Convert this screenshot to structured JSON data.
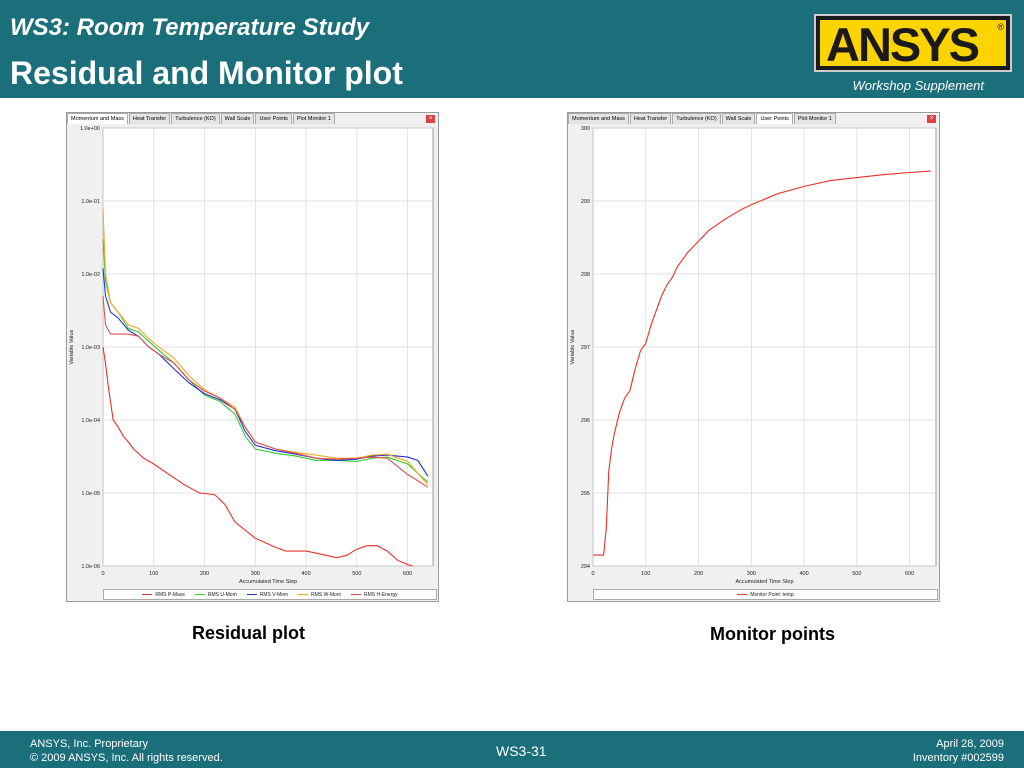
{
  "header": {
    "subtitle": "WS3: Room Temperature Study",
    "title": "Residual and Monitor plot",
    "logo_text": "ANSYS",
    "workshop_label": "Workshop Supplement"
  },
  "footer": {
    "proprietary": "ANSYS, Inc. Proprietary",
    "copyright": "© 2009 ANSYS, Inc.  All rights reserved.",
    "page": "WS3-31",
    "date": "April 28, 2009",
    "inventory": "Inventory #002599"
  },
  "tabs": [
    "Momentum and Mass",
    "Heat Transfer",
    "Turbulence (KO)",
    "Wall Scale",
    "User Points",
    "Plot Monitor 1"
  ],
  "residual_panel": {
    "active_tab": 0,
    "caption": "Residual plot"
  },
  "monitor_panel": {
    "active_tab": 4,
    "caption": "Monitor points"
  },
  "chart_data": [
    {
      "type": "line",
      "title": "",
      "xlabel": "Accumulated Time Step",
      "ylabel": "Variable Value",
      "y_scale": "log",
      "ylim": [
        1e-06,
        1
      ],
      "xlim": [
        0,
        650
      ],
      "x_ticks": [
        "0",
        "100",
        "200",
        "300",
        "400",
        "500",
        "600"
      ],
      "y_ticks": [
        "1.0e-06",
        "1.0e-05",
        "1.0e-04",
        "1.0e-03",
        "1.0e-02",
        "1.0e-01",
        "1.0e+00"
      ],
      "grid": true,
      "legend_position": "bottom",
      "series": [
        {
          "name": "RMS P-Mass",
          "color": "#e8302a",
          "points": [
            [
              0,
              0.001
            ],
            [
              5,
              0.0006
            ],
            [
              10,
              0.0003
            ],
            [
              20,
              0.0001
            ],
            [
              30,
              8e-05
            ],
            [
              40,
              6e-05
            ],
            [
              50,
              5e-05
            ],
            [
              60,
              4e-05
            ],
            [
              80,
              3e-05
            ],
            [
              100,
              2.5e-05
            ],
            [
              130,
              1.8e-05
            ],
            [
              160,
              1.3e-05
            ],
            [
              190,
              1e-05
            ],
            [
              220,
              9.5e-06
            ],
            [
              240,
              7e-06
            ],
            [
              260,
              4e-06
            ],
            [
              300,
              2.4e-06
            ],
            [
              340,
              1.8e-06
            ],
            [
              360,
              1.6e-06
            ],
            [
              380,
              1.6e-06
            ],
            [
              400,
              1.6e-06
            ],
            [
              440,
              1.4e-06
            ],
            [
              460,
              1.3e-06
            ],
            [
              480,
              1.4e-06
            ],
            [
              500,
              1.7e-06
            ],
            [
              520,
              1.9e-06
            ],
            [
              540,
              1.9e-06
            ],
            [
              560,
              1.6e-06
            ],
            [
              580,
              1.2e-06
            ],
            [
              600,
              1.05e-06
            ],
            [
              610,
              1e-06
            ]
          ]
        },
        {
          "name": "RMS U-Mom",
          "color": "#33cc33",
          "points": [
            [
              0,
              0.03
            ],
            [
              5,
              0.008
            ],
            [
              15,
              0.004
            ],
            [
              30,
              0.003
            ],
            [
              50,
              0.0018
            ],
            [
              70,
              0.0016
            ],
            [
              90,
              0.0012
            ],
            [
              110,
              0.0009
            ],
            [
              140,
              0.0006
            ],
            [
              170,
              0.00035
            ],
            [
              200,
              0.00022
            ],
            [
              230,
              0.00018
            ],
            [
              260,
              0.00012
            ],
            [
              280,
              6e-05
            ],
            [
              300,
              4e-05
            ],
            [
              340,
              3.5e-05
            ],
            [
              380,
              3.2e-05
            ],
            [
              420,
              2.8e-05
            ],
            [
              460,
              2.8e-05
            ],
            [
              500,
              2.7e-05
            ],
            [
              530,
              3e-05
            ],
            [
              560,
              3.1e-05
            ],
            [
              600,
              2.5e-05
            ],
            [
              640,
              1.4e-05
            ]
          ]
        },
        {
          "name": "RMS V-Mom",
          "color": "#2233cc",
          "points": [
            [
              0,
              0.012
            ],
            [
              5,
              0.005
            ],
            [
              15,
              0.003
            ],
            [
              30,
              0.0025
            ],
            [
              50,
              0.0017
            ],
            [
              70,
              0.0014
            ],
            [
              90,
              0.001
            ],
            [
              110,
              0.0008
            ],
            [
              140,
              0.0005
            ],
            [
              170,
              0.00032
            ],
            [
              200,
              0.00023
            ],
            [
              230,
              0.00019
            ],
            [
              260,
              0.00014
            ],
            [
              280,
              7e-05
            ],
            [
              300,
              4.5e-05
            ],
            [
              340,
              3.8e-05
            ],
            [
              380,
              3.4e-05
            ],
            [
              420,
              3e-05
            ],
            [
              460,
              2.8e-05
            ],
            [
              500,
              2.9e-05
            ],
            [
              530,
              3.2e-05
            ],
            [
              560,
              3.3e-05
            ],
            [
              600,
              3.1e-05
            ],
            [
              620,
              2.8e-05
            ],
            [
              640,
              1.7e-05
            ]
          ]
        },
        {
          "name": "RMS W-Mom",
          "color": "#f5a623",
          "points": [
            [
              0,
              0.08
            ],
            [
              5,
              0.01
            ],
            [
              15,
              0.004
            ],
            [
              30,
              0.003
            ],
            [
              50,
              0.002
            ],
            [
              70,
              0.0018
            ],
            [
              90,
              0.0013
            ],
            [
              110,
              0.001
            ],
            [
              140,
              0.0007
            ],
            [
              170,
              0.0004
            ],
            [
              200,
              0.00026
            ],
            [
              230,
              0.0002
            ],
            [
              260,
              0.00015
            ],
            [
              280,
              8e-05
            ],
            [
              300,
              5e-05
            ],
            [
              340,
              4e-05
            ],
            [
              380,
              3.6e-05
            ],
            [
              420,
              3.3e-05
            ],
            [
              460,
              3e-05
            ],
            [
              500,
              3e-05
            ],
            [
              530,
              3.3e-05
            ],
            [
              560,
              3.4e-05
            ],
            [
              600,
              2.7e-05
            ],
            [
              640,
              1.3e-05
            ]
          ]
        },
        {
          "name": "RMS H-Energy",
          "color": "#e05050",
          "points": [
            [
              0,
              0.005
            ],
            [
              5,
              0.002
            ],
            [
              15,
              0.0015
            ],
            [
              30,
              0.0015
            ],
            [
              50,
              0.0015
            ],
            [
              70,
              0.0014
            ],
            [
              90,
              0.001
            ],
            [
              110,
              0.0008
            ],
            [
              140,
              0.0006
            ],
            [
              170,
              0.00035
            ],
            [
              200,
              0.00025
            ],
            [
              230,
              0.0002
            ],
            [
              260,
              0.00014
            ],
            [
              280,
              8e-05
            ],
            [
              300,
              5e-05
            ],
            [
              340,
              4e-05
            ],
            [
              380,
              3.5e-05
            ],
            [
              420,
              3e-05
            ],
            [
              460,
              2.9e-05
            ],
            [
              500,
              3e-05
            ],
            [
              530,
              3.1e-05
            ],
            [
              560,
              3e-05
            ],
            [
              600,
              1.8e-05
            ],
            [
              640,
              1.2e-05
            ]
          ]
        }
      ]
    },
    {
      "type": "line",
      "title": "",
      "xlabel": "Accumulated Time Step",
      "ylabel": "Variable Value",
      "ylim": [
        294,
        300
      ],
      "xlim": [
        0,
        650
      ],
      "x_ticks": [
        "0",
        "100",
        "200",
        "300",
        "400",
        "500",
        "600"
      ],
      "y_ticks": [
        "294",
        "295",
        "296",
        "297",
        "298",
        "299",
        "300"
      ],
      "grid": true,
      "legend_position": "bottom",
      "series": [
        {
          "name": "Monitor Point: temp",
          "color": "#e8302a",
          "points": [
            [
              0,
              294.15
            ],
            [
              20,
              294.15
            ],
            [
              25,
              294.5
            ],
            [
              30,
              295.3
            ],
            [
              35,
              295.6
            ],
            [
              40,
              295.8
            ],
            [
              50,
              296.1
            ],
            [
              60,
              296.3
            ],
            [
              70,
              296.4
            ],
            [
              80,
              296.7
            ],
            [
              90,
              296.95
            ],
            [
              100,
              297.05
            ],
            [
              110,
              297.3
            ],
            [
              120,
              297.5
            ],
            [
              130,
              297.7
            ],
            [
              140,
              297.85
            ],
            [
              150,
              297.95
            ],
            [
              160,
              298.1
            ],
            [
              180,
              298.3
            ],
            [
              200,
              298.45
            ],
            [
              220,
              298.6
            ],
            [
              250,
              298.75
            ],
            [
              280,
              298.88
            ],
            [
              300,
              298.95
            ],
            [
              350,
              299.1
            ],
            [
              400,
              299.2
            ],
            [
              450,
              299.28
            ],
            [
              500,
              299.32
            ],
            [
              550,
              299.36
            ],
            [
              600,
              299.39
            ],
            [
              640,
              299.41
            ]
          ]
        }
      ]
    }
  ]
}
